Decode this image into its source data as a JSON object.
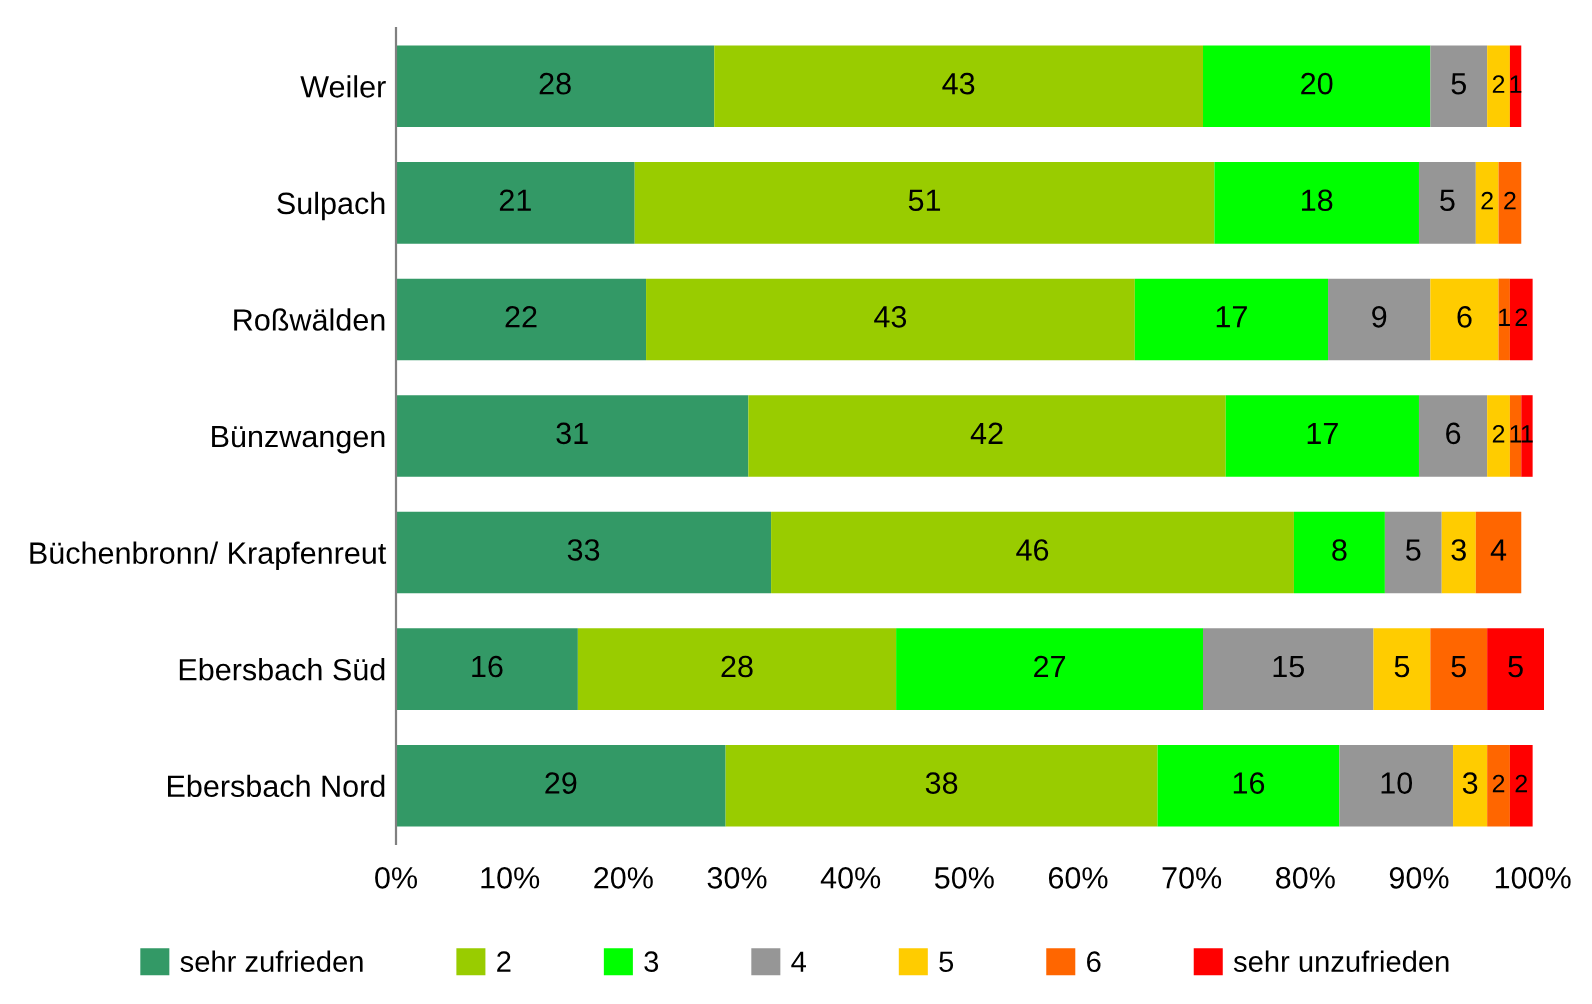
{
  "chart_data": {
    "type": "bar",
    "orientation": "horizontal",
    "stacked": true,
    "data_labels": true,
    "legend": "bottom",
    "grid": false,
    "categories": [
      "Weiler",
      "Sulpach",
      "Roßwälden",
      "Bünzwangen",
      "Büchenbronn/ Krapfenreut",
      "Ebersbach Süd",
      "Ebersbach Nord"
    ],
    "xlim": [
      0,
      101
    ],
    "xticks": [
      {
        "value": 0,
        "label": "0%"
      },
      {
        "value": 10,
        "label": "10%"
      },
      {
        "value": 20,
        "label": "20%"
      },
      {
        "value": 30,
        "label": "30%"
      },
      {
        "value": 40,
        "label": "40%"
      },
      {
        "value": 50,
        "label": "50%"
      },
      {
        "value": 60,
        "label": "60%"
      },
      {
        "value": 70,
        "label": "70%"
      },
      {
        "value": 80,
        "label": "80%"
      },
      {
        "value": 90,
        "label": "90%"
      },
      {
        "value": 100,
        "label": "100%"
      }
    ],
    "series": [
      {
        "name": "sehr zufrieden",
        "color": "#339966",
        "values": [
          28,
          21,
          22,
          31,
          33,
          16,
          29
        ]
      },
      {
        "name": "2",
        "color": "#99cc00",
        "values": [
          43,
          51,
          43,
          42,
          46,
          28,
          38
        ]
      },
      {
        "name": "3",
        "color": "#00ff00",
        "values": [
          20,
          18,
          17,
          17,
          8,
          27,
          16
        ]
      },
      {
        "name": "4",
        "color": "#969696",
        "values": [
          5,
          5,
          9,
          6,
          5,
          15,
          10
        ]
      },
      {
        "name": "5",
        "color": "#ffcc00",
        "values": [
          2,
          2,
          6,
          2,
          3,
          5,
          3
        ]
      },
      {
        "name": "6",
        "color": "#ff6600",
        "values": [
          null,
          2,
          1,
          1,
          4,
          5,
          2
        ]
      },
      {
        "name": "sehr unzufrieden",
        "color": "#ff0000",
        "values": [
          1,
          null,
          2,
          1,
          null,
          5,
          2
        ]
      }
    ]
  }
}
